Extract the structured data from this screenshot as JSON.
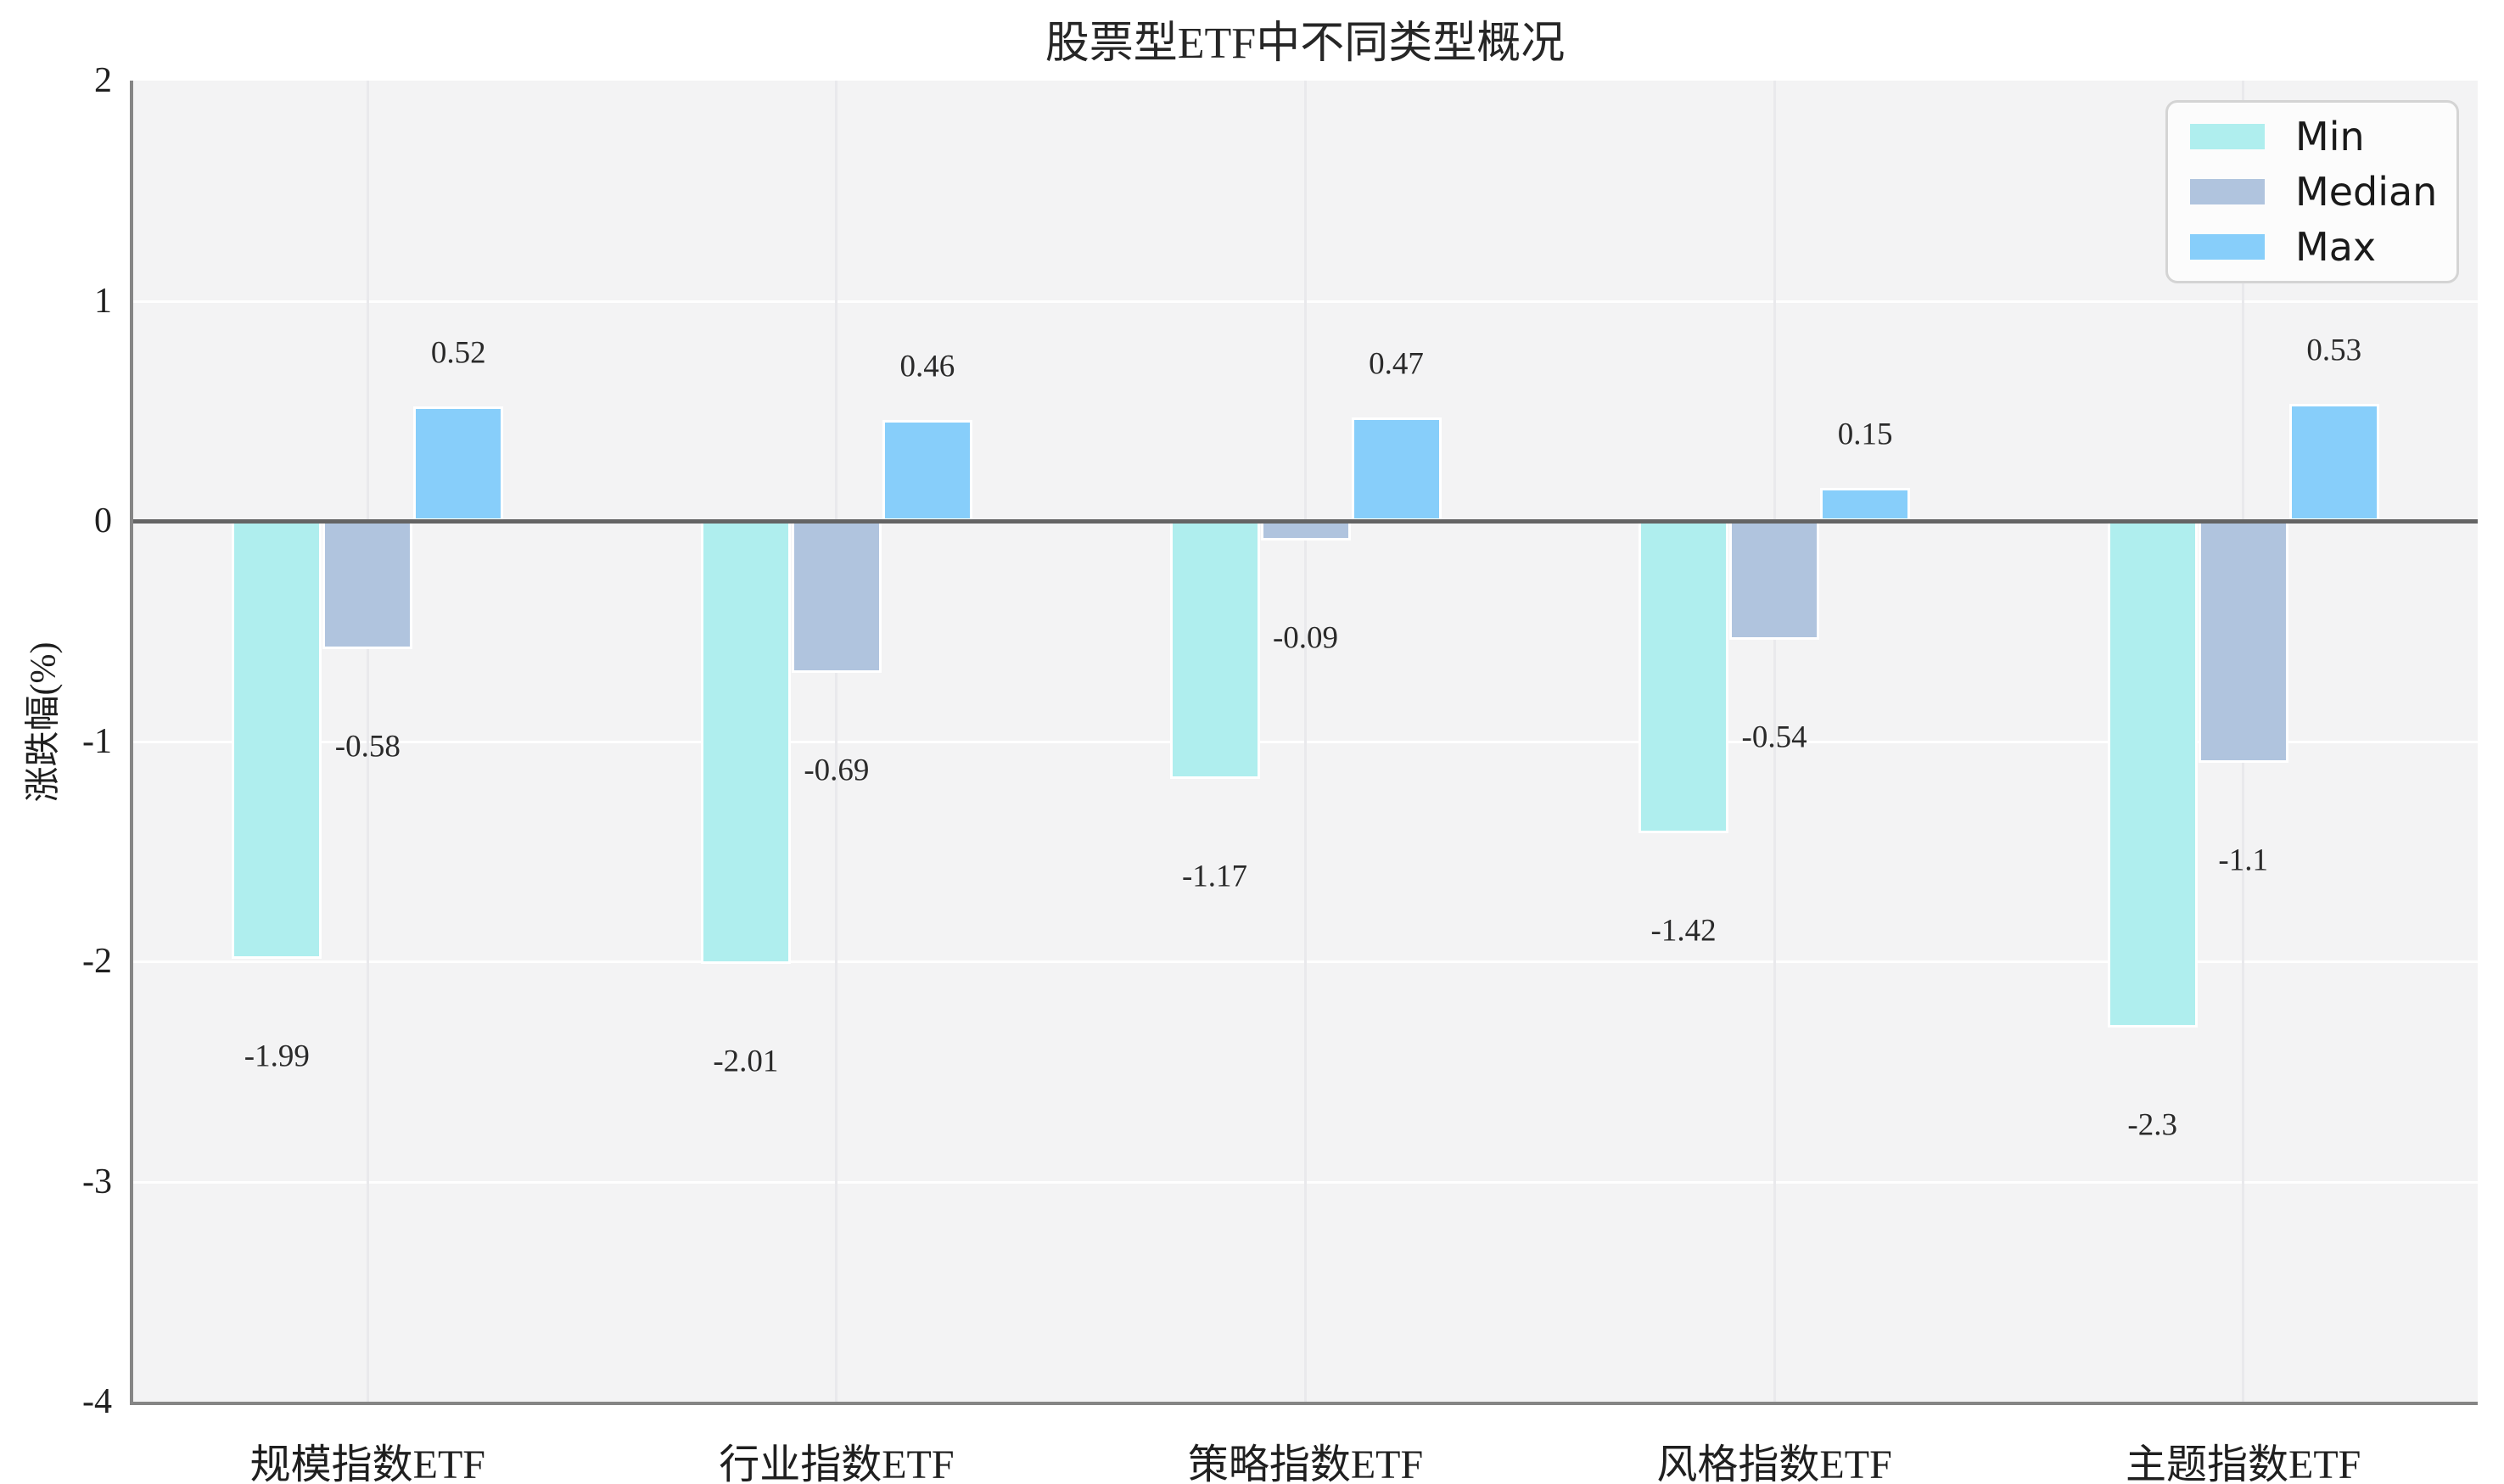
{
  "title": "股票型ETF中不同类型概况",
  "y_axis_label": "涨跌幅(%)",
  "y_ticks": [
    "2",
    "1",
    "0",
    "-1",
    "-2",
    "-3",
    "-4"
  ],
  "legend": {
    "items": [
      {
        "label": "Min",
        "color": "#AFEEEE"
      },
      {
        "label": "Median",
        "color": "#B0C4DE"
      },
      {
        "label": "Max",
        "color": "#87CEFA"
      }
    ]
  },
  "colors": {
    "min_bar": "#AFEEEE",
    "median_bar": "#B0C4DE",
    "max_bar": "#87CEFA",
    "plot_background": "#f3f3f4",
    "zero_line": "#646464",
    "grid_horizontal": "#fefefe",
    "grid_vertical": "#e9e9ec"
  },
  "chart_data": {
    "type": "bar",
    "title": "股票型ETF中不同类型概况",
    "xlabel": "",
    "ylabel": "涨跌幅(%)",
    "ylim": [
      -4,
      2
    ],
    "y_tick_step": 1,
    "grid": true,
    "legend_position": "upper right",
    "categories": [
      "规模指数ETF",
      "行业指数ETF",
      "策略指数ETF",
      "风格指数ETF",
      "主题指数ETF"
    ],
    "series": [
      {
        "name": "Min",
        "color": "#AFEEEE",
        "values": [
          -1.99,
          -2.01,
          -1.17,
          -1.42,
          -2.3
        ],
        "labels": [
          "-1.99",
          "-2.01",
          "-1.17",
          "-1.42",
          "-2.3"
        ]
      },
      {
        "name": "Median",
        "color": "#B0C4DE",
        "values": [
          -0.58,
          -0.69,
          -0.09,
          -0.54,
          -1.1
        ],
        "labels": [
          "-0.58",
          "-0.69",
          "-0.09",
          "-0.54",
          "-1.1"
        ]
      },
      {
        "name": "Max",
        "color": "#87CEFA",
        "values": [
          0.52,
          0.46,
          0.47,
          0.15,
          0.53
        ],
        "labels": [
          "0.52",
          "0.46",
          "0.47",
          "0.15",
          "0.53"
        ]
      }
    ]
  }
}
